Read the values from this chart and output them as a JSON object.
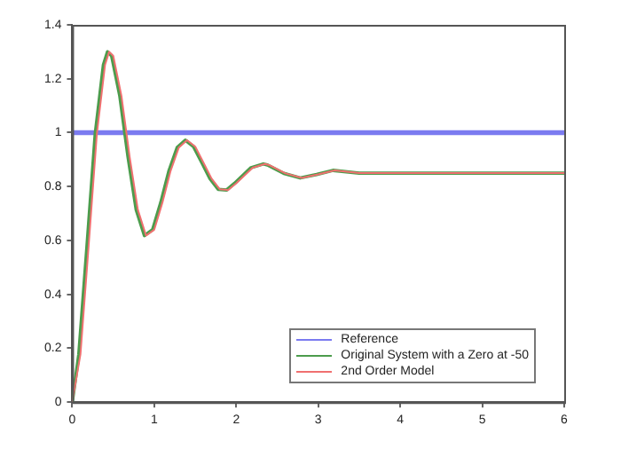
{
  "chart_data": {
    "type": "line",
    "xlim": [
      0,
      6
    ],
    "xticks": [
      0,
      1,
      2,
      3,
      4,
      5,
      6
    ],
    "ylim": [
      0,
      1.4
    ],
    "yticks": [
      0,
      0.2,
      0.4,
      0.6,
      0.8,
      1,
      1.2,
      1.4
    ],
    "grid": false,
    "legend": "bottom right",
    "marker": "none",
    "line_style": "solid",
    "series": [
      {
        "name": "Reference",
        "color": "#7b7bf0",
        "x": [
          0,
          6
        ],
        "values": [
          1,
          1
        ]
      },
      {
        "name": "Original System with a Zero at -50",
        "color": "#4c9c4c",
        "x": [
          0,
          0.08,
          0.18,
          0.28,
          0.38,
          0.43,
          0.48,
          0.58,
          0.68,
          0.78,
          0.88,
          0.98,
          1.08,
          1.18,
          1.28,
          1.38,
          1.48,
          1.58,
          1.68,
          1.78,
          1.88,
          1.98,
          2.18,
          2.33,
          2.38,
          2.58,
          2.78,
          2.98,
          3.18,
          3.5,
          4,
          5,
          6
        ],
        "values": [
          0,
          0.178,
          0.581,
          0.995,
          1.252,
          1.3,
          1.285,
          1.136,
          0.91,
          0.714,
          0.618,
          0.64,
          0.741,
          0.859,
          0.945,
          0.972,
          0.948,
          0.889,
          0.829,
          0.79,
          0.787,
          0.812,
          0.87,
          0.884,
          0.88,
          0.849,
          0.832,
          0.845,
          0.86,
          0.85,
          0.85,
          0.85,
          0.85
        ]
      },
      {
        "name": "2nd Order Model",
        "color": "#f07070",
        "x": [
          0,
          0.1,
          0.2,
          0.3,
          0.4,
          0.45,
          0.5,
          0.6,
          0.7,
          0.8,
          0.9,
          1,
          1.1,
          1.2,
          1.3,
          1.4,
          1.5,
          1.6,
          1.7,
          1.8,
          1.9,
          2,
          2.2,
          2.35,
          2.4,
          2.6,
          2.8,
          3,
          3.2,
          3.5,
          4,
          5,
          6
        ],
        "values": [
          0,
          0.178,
          0.581,
          0.995,
          1.252,
          1.3,
          1.285,
          1.136,
          0.91,
          0.714,
          0.618,
          0.64,
          0.741,
          0.859,
          0.945,
          0.972,
          0.948,
          0.889,
          0.829,
          0.79,
          0.787,
          0.812,
          0.87,
          0.884,
          0.88,
          0.849,
          0.832,
          0.845,
          0.86,
          0.85,
          0.85,
          0.85,
          0.85
        ]
      }
    ]
  }
}
